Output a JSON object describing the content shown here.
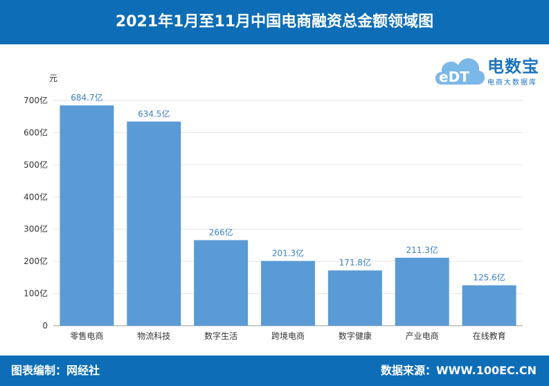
{
  "header": {
    "title": "2021年1月至11月中国电商融资总金额领域图"
  },
  "logo": {
    "name": "电数宝",
    "subtitle": "电商大数据库",
    "badge": "eDT"
  },
  "footer": {
    "left": "图表编制：网经社",
    "right": "数据来源：WWW.100EC.CN"
  },
  "colors": {
    "header_bg": "#0d6db7",
    "bar": "#5b9bd5",
    "label": "#3a7fc4",
    "axis_text": "#333333",
    "grid": "#e6e6e6"
  },
  "chart_data": {
    "type": "bar",
    "ylabel": "元",
    "categories": [
      "零售电商",
      "物流科技",
      "数字生活",
      "跨境电商",
      "数字健康",
      "产业电商",
      "在线教育"
    ],
    "values": [
      684.7,
      634.5,
      266,
      201.3,
      171.8,
      211.3,
      125.6
    ],
    "data_labels": [
      "684.7亿",
      "634.5亿",
      "266亿",
      "201.3亿",
      "171.8亿",
      "211.3亿",
      "125.6亿"
    ],
    "yticks": [
      0,
      100,
      200,
      300,
      400,
      500,
      600,
      700
    ],
    "ytick_labels": [
      "0",
      "100亿",
      "200亿",
      "300亿",
      "400亿",
      "500亿",
      "600亿",
      "700亿"
    ],
    "ylim": [
      0,
      700
    ],
    "grid": true
  }
}
